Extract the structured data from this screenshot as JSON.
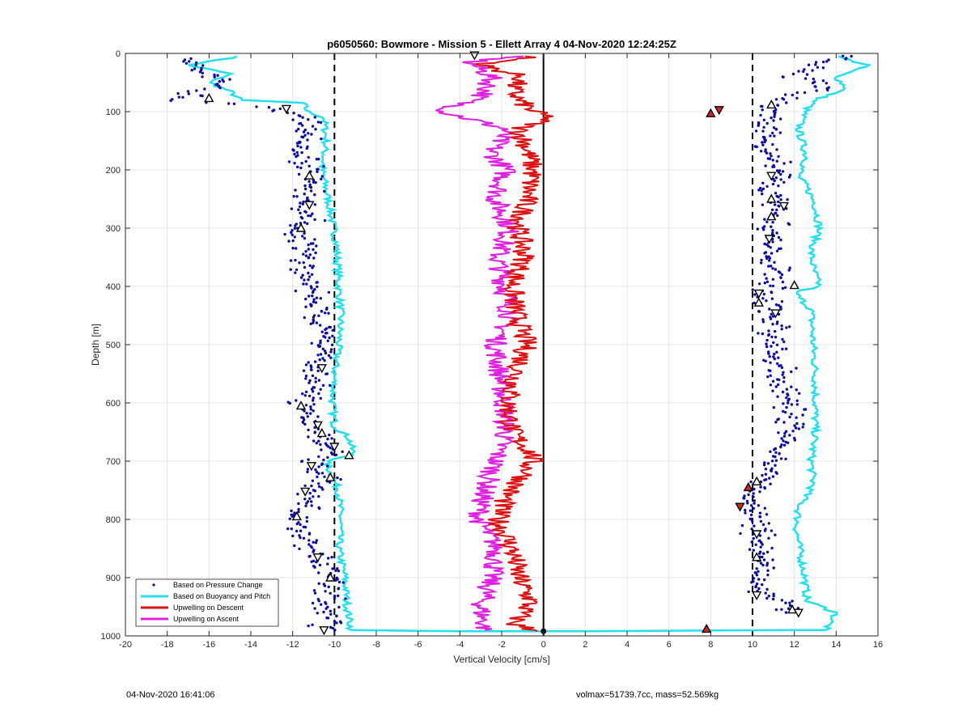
{
  "chart_data": {
    "type": "scatter",
    "title": "p6050560: Bowmore - Mission 5 - Ellett Array 4 04-Nov-2020 12:24:25Z",
    "xlabel": "Vertical Velocity [cm/s]",
    "ylabel": "Depth [m]",
    "xlim": [
      -20,
      16
    ],
    "ylim": [
      0,
      1000
    ],
    "y_reversed": true,
    "x_ticks": [
      -20,
      -18,
      -16,
      -14,
      -12,
      -10,
      -8,
      -6,
      -4,
      -2,
      0,
      2,
      4,
      6,
      8,
      10,
      12,
      14,
      16
    ],
    "y_ticks": [
      0,
      100,
      200,
      300,
      400,
      500,
      600,
      700,
      800,
      900,
      1000
    ],
    "grid": true,
    "legend_position": "bottom-left",
    "reference_lines": [
      {
        "x": -10,
        "style": "dashed",
        "color": "#000000"
      },
      {
        "x": 0,
        "style": "solid",
        "color": "#000000"
      },
      {
        "x": 10,
        "style": "dashed",
        "color": "#000000"
      }
    ],
    "series": [
      {
        "name": "Based on Pressure Change",
        "kind": "points",
        "color": "#0a0aa8",
        "descent": [
          [
            -16.5,
            10
          ],
          [
            -17,
            25
          ],
          [
            -15.5,
            45
          ],
          [
            -16.2,
            60
          ],
          [
            -17.5,
            80
          ],
          [
            -12.5,
            95
          ],
          [
            -11.5,
            110
          ],
          [
            -11.2,
            140
          ],
          [
            -11.8,
            170
          ],
          [
            -11,
            200
          ],
          [
            -11.2,
            230
          ],
          [
            -11.6,
            260
          ],
          [
            -11,
            290
          ],
          [
            -12.4,
            300
          ],
          [
            -11.3,
            330
          ],
          [
            -11.6,
            360
          ],
          [
            -11.2,
            400
          ],
          [
            -10.8,
            450
          ],
          [
            -10.6,
            500
          ],
          [
            -10.7,
            550
          ],
          [
            -11.5,
            600
          ],
          [
            -11,
            630
          ],
          [
            -10.8,
            650
          ],
          [
            -10.2,
            680
          ],
          [
            -11,
            705
          ],
          [
            -10.5,
            730
          ],
          [
            -11.2,
            760
          ],
          [
            -11.8,
            800
          ],
          [
            -11.3,
            840
          ],
          [
            -10.8,
            870
          ],
          [
            -10.2,
            900
          ],
          [
            -10.3,
            950
          ],
          [
            -10.4,
            990
          ]
        ],
        "ascent": [
          [
            15,
            5
          ],
          [
            13,
            20
          ],
          [
            12,
            40
          ],
          [
            13.5,
            60
          ],
          [
            11.5,
            80
          ],
          [
            11,
            100
          ],
          [
            10.6,
            130
          ],
          [
            10.8,
            160
          ],
          [
            11.2,
            200
          ],
          [
            10.7,
            240
          ],
          [
            11.3,
            270
          ],
          [
            10.9,
            300
          ],
          [
            10.6,
            340
          ],
          [
            11.4,
            380
          ],
          [
            10.5,
            410
          ],
          [
            10.8,
            440
          ],
          [
            11,
            480
          ],
          [
            11.2,
            520
          ],
          [
            11.5,
            560
          ],
          [
            11.8,
            600
          ],
          [
            12,
            640
          ],
          [
            11.4,
            680
          ],
          [
            10.6,
            720
          ],
          [
            9.8,
            760
          ],
          [
            10,
            800
          ],
          [
            10.5,
            840
          ],
          [
            10.6,
            880
          ],
          [
            10.3,
            920
          ],
          [
            12,
            960
          ]
        ]
      },
      {
        "name": "Based on Buoyancy and Pitch",
        "kind": "line",
        "color": "#22e0f0",
        "descent": [
          [
            -14.5,
            5
          ],
          [
            -17,
            20
          ],
          [
            -15,
            35
          ],
          [
            -16,
            50
          ],
          [
            -15,
            65
          ],
          [
            -14.5,
            80
          ],
          [
            -11.5,
            85
          ],
          [
            -11.3,
            100
          ],
          [
            -10.5,
            110
          ],
          [
            -10.4,
            150
          ],
          [
            -10.6,
            200
          ],
          [
            -10.3,
            250
          ],
          [
            -10.1,
            290
          ],
          [
            -9.9,
            330
          ],
          [
            -9.8,
            400
          ],
          [
            -9.7,
            450
          ],
          [
            -9.8,
            500
          ],
          [
            -10,
            550
          ],
          [
            -10.1,
            600
          ],
          [
            -10,
            640
          ],
          [
            -9.3,
            660
          ],
          [
            -9.1,
            690
          ],
          [
            -10.4,
            700
          ],
          [
            -10.2,
            720
          ],
          [
            -9.8,
            750
          ],
          [
            -9.7,
            800
          ],
          [
            -9.8,
            850
          ],
          [
            -9.5,
            900
          ],
          [
            -9.4,
            950
          ],
          [
            -9.2,
            990
          ]
        ],
        "ascent": [
          [
            14,
            5
          ],
          [
            15.5,
            20
          ],
          [
            14,
            40
          ],
          [
            14.5,
            60
          ],
          [
            13,
            80
          ],
          [
            12.5,
            100
          ],
          [
            12.2,
            130
          ],
          [
            12.6,
            180
          ],
          [
            12.2,
            210
          ],
          [
            12.6,
            230
          ],
          [
            13,
            260
          ],
          [
            13.2,
            300
          ],
          [
            12.8,
            340
          ],
          [
            12.9,
            370
          ],
          [
            13.2,
            400
          ],
          [
            12,
            410
          ],
          [
            12.8,
            440
          ],
          [
            12.9,
            500
          ],
          [
            13,
            550
          ],
          [
            13,
            600
          ],
          [
            13,
            650
          ],
          [
            12.8,
            700
          ],
          [
            12.9,
            740
          ],
          [
            12.2,
            780
          ],
          [
            12.1,
            820
          ],
          [
            12.3,
            860
          ],
          [
            12.5,
            900
          ],
          [
            12.6,
            940
          ],
          [
            14,
            960
          ],
          [
            13.5,
            990
          ]
        ]
      },
      {
        "name": "Upwelling on Descent",
        "kind": "line",
        "color": "#dd1010",
        "points": [
          [
            -0.5,
            5
          ],
          [
            -3,
            20
          ],
          [
            -1,
            40
          ],
          [
            -1.5,
            60
          ],
          [
            -1.2,
            80
          ],
          [
            -0.5,
            100
          ],
          [
            0.3,
            110
          ],
          [
            -1.2,
            130
          ],
          [
            -0.8,
            160
          ],
          [
            -0.5,
            200
          ],
          [
            -0.8,
            250
          ],
          [
            -1.2,
            300
          ],
          [
            -0.9,
            350
          ],
          [
            -1.5,
            400
          ],
          [
            -1.3,
            450
          ],
          [
            -0.8,
            500
          ],
          [
            -1.3,
            550
          ],
          [
            -1.7,
            600
          ],
          [
            -1.5,
            650
          ],
          [
            -0.5,
            690
          ],
          [
            -0.8,
            720
          ],
          [
            -1.8,
            760
          ],
          [
            -2.2,
            800
          ],
          [
            -1.5,
            850
          ],
          [
            -1.2,
            900
          ],
          [
            -0.6,
            940
          ],
          [
            -1.4,
            980
          ],
          [
            -0.3,
            992
          ]
        ]
      },
      {
        "name": "Upwelling on Ascent",
        "kind": "line",
        "color": "#e020e0",
        "points": [
          [
            -1.5,
            5
          ],
          [
            -3.5,
            15
          ],
          [
            -2.5,
            40
          ],
          [
            -2.8,
            70
          ],
          [
            -4.8,
            100
          ],
          [
            -1.8,
            130
          ],
          [
            -2.5,
            170
          ],
          [
            -1.8,
            200
          ],
          [
            -2.3,
            250
          ],
          [
            -1.6,
            300
          ],
          [
            -2.2,
            350
          ],
          [
            -1.9,
            400
          ],
          [
            -1.6,
            450
          ],
          [
            -2.3,
            500
          ],
          [
            -2.1,
            550
          ],
          [
            -1.9,
            600
          ],
          [
            -1.8,
            650
          ],
          [
            -2.3,
            700
          ],
          [
            -2.9,
            760
          ],
          [
            -3.1,
            800
          ],
          [
            -2.2,
            850
          ],
          [
            -2.5,
            900
          ],
          [
            -3.0,
            950
          ],
          [
            -2.8,
            990
          ]
        ]
      }
    ],
    "transition_line": [
      [
        -9.2,
        990
      ],
      [
        -4,
        992
      ],
      [
        2,
        992
      ],
      [
        12,
        990
      ],
      [
        13.5,
        990
      ]
    ],
    "markers": {
      "descent_triangles": [
        [
          -16,
          77
        ],
        [
          -12.3,
          95
        ],
        [
          -11.2,
          210
        ],
        [
          -11.2,
          260
        ],
        [
          -11.6,
          300
        ],
        [
          -10.6,
          540
        ],
        [
          -11.6,
          605
        ],
        [
          -10.8,
          638
        ],
        [
          -10.6,
          652
        ],
        [
          -10,
          675
        ],
        [
          -9.3,
          690
        ],
        [
          -11.1,
          708
        ],
        [
          -10.2,
          728
        ],
        [
          -11.4,
          752
        ],
        [
          -11.8,
          795
        ],
        [
          -10.8,
          865
        ],
        [
          -10.2,
          900
        ],
        [
          -10.5,
          990
        ]
      ],
      "ascent_triangles": [
        [
          -3.3,
          3
        ],
        [
          10.9,
          88
        ],
        [
          10.9,
          210
        ],
        [
          10.9,
          250
        ],
        [
          11.5,
          262
        ],
        [
          10.9,
          280
        ],
        [
          10.8,
          318
        ],
        [
          12.0,
          398
        ],
        [
          10.3,
          412
        ],
        [
          10.3,
          428
        ],
        [
          11.1,
          446
        ],
        [
          10.2,
          735
        ],
        [
          10.2,
          825
        ],
        [
          10.2,
          865
        ],
        [
          10.2,
          930
        ],
        [
          11.9,
          955
        ],
        [
          12.2,
          960
        ]
      ],
      "red_triangles": [
        [
          8.0,
          103
        ],
        [
          8.4,
          97
        ],
        [
          9.8,
          745
        ],
        [
          9.4,
          778
        ],
        [
          7.8,
          988
        ]
      ],
      "black_dot": [
        0,
        992
      ]
    }
  },
  "footer": {
    "timestamp": "04-Nov-2020 16:41:06",
    "summary": "volmax=51739.7cc, mass=52.569kg"
  }
}
